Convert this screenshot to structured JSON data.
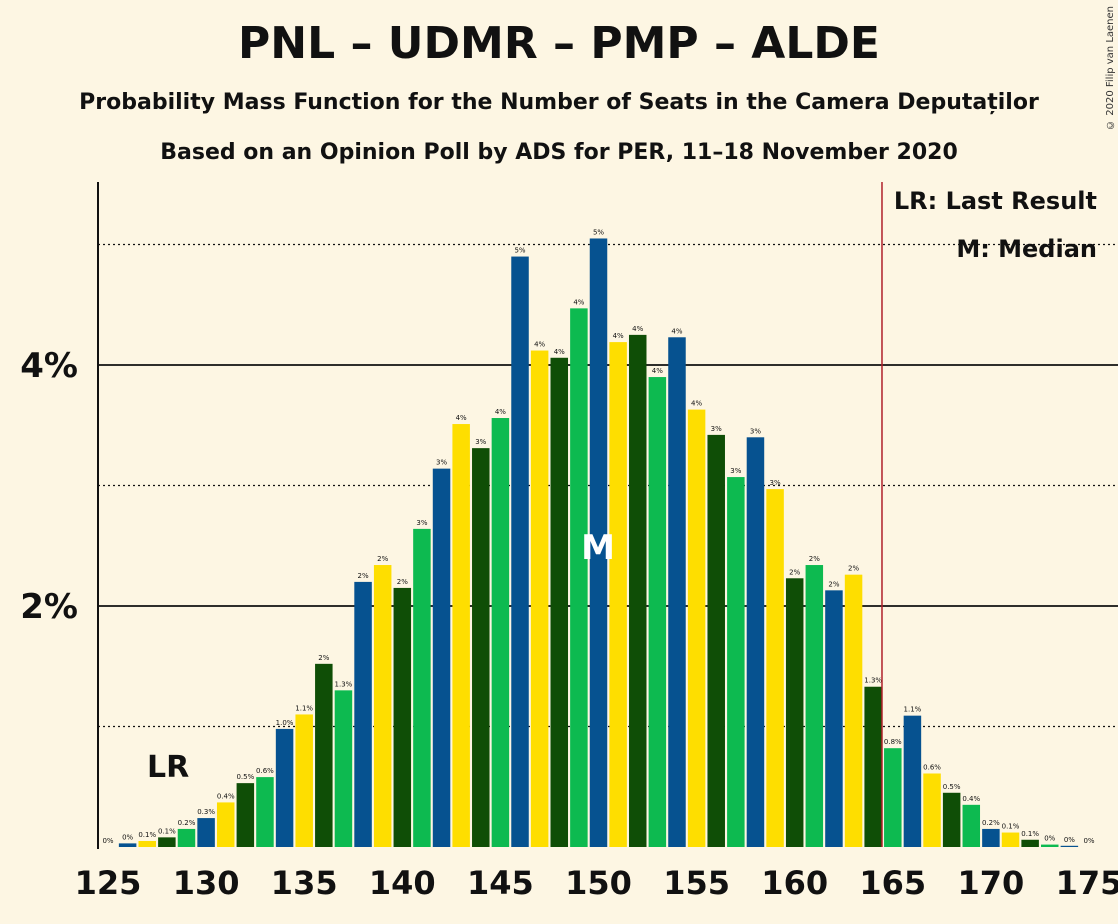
{
  "title": "PNL – UDMR – PMP – ALDE",
  "subtitle1": "Probability Mass Function for the Number of Seats in the Camera Deputaților",
  "subtitle2": "Based on an Opinion Poll by ADS for PER, 11–18 November 2020",
  "copyright": "© 2020 Filip van Laenen",
  "legend": {
    "lr": "LR: Last Result",
    "median": "M: Median"
  },
  "markers": {
    "lr_label": "LR",
    "median_label": "M",
    "last_result_seat": 128,
    "median_seat": 150,
    "majority_line_seat": 165
  },
  "colors": {
    "background": "#fdf6e3",
    "green": "#0dba50",
    "blue": "#065290",
    "yellow": "#fede00",
    "dark_green": "#0f4e06",
    "red_line": "#b0202a"
  },
  "chart_data": {
    "type": "bar",
    "xlabel": "",
    "ylabel": "",
    "x_ticks": [
      125,
      130,
      135,
      140,
      145,
      150,
      155,
      160,
      165,
      170,
      175
    ],
    "y_ticks": [
      {
        "value": 2,
        "label": "2%"
      },
      {
        "value": 4,
        "label": "4%"
      }
    ],
    "dotted_gridlines": [
      1,
      3,
      5
    ],
    "ylim": [
      0,
      5.5
    ],
    "color_cycle": [
      "green",
      "blue",
      "yellow",
      "dark_green"
    ],
    "bars": [
      {
        "seat": 125,
        "value": 0.0,
        "label": "0%"
      },
      {
        "seat": 126,
        "value": 0.03,
        "label": "0%"
      },
      {
        "seat": 127,
        "value": 0.05,
        "label": "0.1%"
      },
      {
        "seat": 128,
        "value": 0.08,
        "label": "0.1%"
      },
      {
        "seat": 129,
        "value": 0.15,
        "label": "0.2%"
      },
      {
        "seat": 130,
        "value": 0.24,
        "label": "0.3%"
      },
      {
        "seat": 131,
        "value": 0.37,
        "label": "0.4%"
      },
      {
        "seat": 132,
        "value": 0.53,
        "label": "0.5%"
      },
      {
        "seat": 133,
        "value": 0.58,
        "label": "0.6%"
      },
      {
        "seat": 134,
        "value": 0.98,
        "label": "1.0%"
      },
      {
        "seat": 135,
        "value": 1.1,
        "label": "1.1%"
      },
      {
        "seat": 136,
        "value": 1.52,
        "label": "2%"
      },
      {
        "seat": 137,
        "value": 1.3,
        "label": "1.3%"
      },
      {
        "seat": 138,
        "value": 2.2,
        "label": "2%"
      },
      {
        "seat": 139,
        "value": 2.34,
        "label": "2%"
      },
      {
        "seat": 140,
        "value": 2.15,
        "label": "2%"
      },
      {
        "seat": 141,
        "value": 2.64,
        "label": "3%"
      },
      {
        "seat": 142,
        "value": 3.14,
        "label": "3%"
      },
      {
        "seat": 143,
        "value": 3.51,
        "label": "4%"
      },
      {
        "seat": 144,
        "value": 3.31,
        "label": "3%"
      },
      {
        "seat": 145,
        "value": 3.56,
        "label": "4%"
      },
      {
        "seat": 146,
        "value": 4.9,
        "label": "5%"
      },
      {
        "seat": 147,
        "value": 4.12,
        "label": "4%"
      },
      {
        "seat": 148,
        "value": 4.06,
        "label": "4%"
      },
      {
        "seat": 149,
        "value": 4.47,
        "label": "4%"
      },
      {
        "seat": 150,
        "value": 5.05,
        "label": "5%"
      },
      {
        "seat": 151,
        "value": 4.19,
        "label": "4%"
      },
      {
        "seat": 152,
        "value": 4.25,
        "label": "4%"
      },
      {
        "seat": 153,
        "value": 3.9,
        "label": "4%"
      },
      {
        "seat": 154,
        "value": 4.23,
        "label": "4%"
      },
      {
        "seat": 155,
        "value": 3.63,
        "label": "4%"
      },
      {
        "seat": 156,
        "value": 3.42,
        "label": "3%"
      },
      {
        "seat": 157,
        "value": 3.07,
        "label": "3%"
      },
      {
        "seat": 158,
        "value": 3.4,
        "label": "3%"
      },
      {
        "seat": 159,
        "value": 2.97,
        "label": "3%"
      },
      {
        "seat": 160,
        "value": 2.23,
        "label": "2%"
      },
      {
        "seat": 161,
        "value": 2.34,
        "label": "2%"
      },
      {
        "seat": 162,
        "value": 2.13,
        "label": "2%"
      },
      {
        "seat": 163,
        "value": 2.26,
        "label": "2%"
      },
      {
        "seat": 164,
        "value": 1.33,
        "label": "1.3%"
      },
      {
        "seat": 165,
        "value": 0.82,
        "label": "0.8%"
      },
      {
        "seat": 166,
        "value": 1.09,
        "label": "1.1%"
      },
      {
        "seat": 167,
        "value": 0.61,
        "label": "0.6%"
      },
      {
        "seat": 168,
        "value": 0.45,
        "label": "0.5%"
      },
      {
        "seat": 169,
        "value": 0.35,
        "label": "0.4%"
      },
      {
        "seat": 170,
        "value": 0.15,
        "label": "0.2%"
      },
      {
        "seat": 171,
        "value": 0.12,
        "label": "0.1%"
      },
      {
        "seat": 172,
        "value": 0.06,
        "label": "0.1%"
      },
      {
        "seat": 173,
        "value": 0.02,
        "label": "0%"
      },
      {
        "seat": 174,
        "value": 0.01,
        "label": "0%"
      },
      {
        "seat": 175,
        "value": 0.0,
        "label": "0%"
      }
    ]
  }
}
